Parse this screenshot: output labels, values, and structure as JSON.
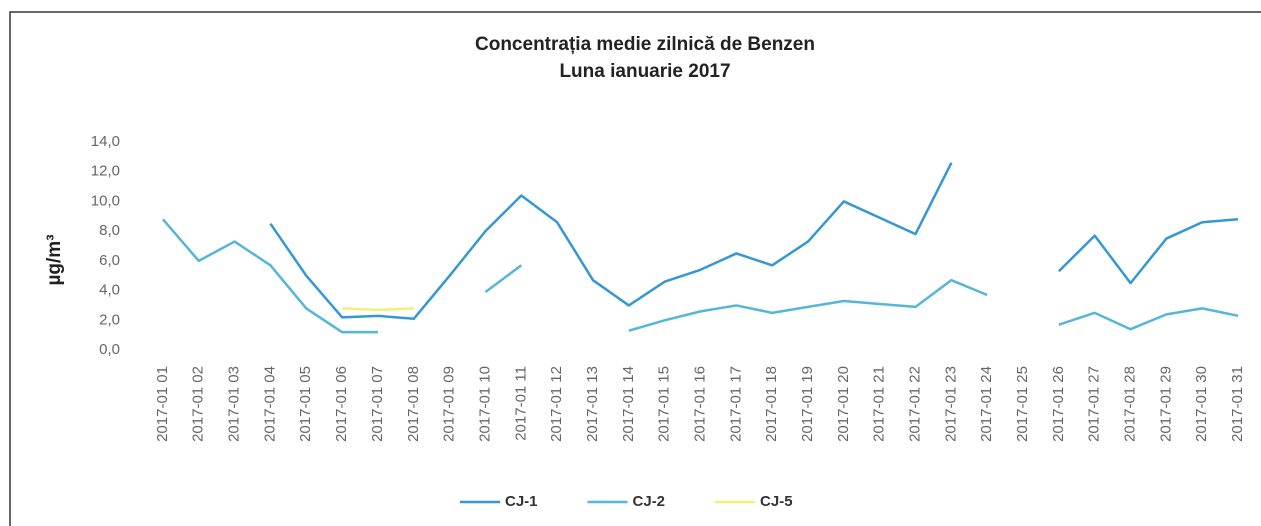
{
  "chart_data": {
    "type": "line",
    "title": "Concentrația medie zilnică de Benzen",
    "subtitle": "Luna ianuarie 2017",
    "y_label": "µg/m³",
    "categories": [
      "2017-01 01",
      "2017-01 02",
      "2017-01 03",
      "2017-01 04",
      "2017-01 05",
      "2017-01 06",
      "2017-01 07",
      "2017-01 08",
      "2017-01 09",
      "2017-01 10",
      "2017-01 11",
      "2017-01 12",
      "2017-01 13",
      "2017-01 14",
      "2017-01 15",
      "2017-01 16",
      "2017-01 17",
      "2017-01 18",
      "2017-01 19",
      "2017-01 20",
      "2017-01 21",
      "2017-01 22",
      "2017-01 23",
      "2017-01 24",
      "2017-01 25",
      "2017-01 26",
      "2017-01 27",
      "2017-01 28",
      "2017-01 29",
      "2017-01 30",
      "2017-01 31"
    ],
    "series": [
      {
        "name": "CJ-1",
        "color": "#3597d3",
        "values": [
          null,
          null,
          null,
          8.5,
          5.0,
          2.2,
          2.3,
          2.1,
          5.0,
          8.0,
          10.4,
          8.6,
          4.7,
          3.0,
          4.6,
          5.4,
          6.5,
          5.7,
          7.3,
          10.0,
          8.9,
          7.8,
          12.6,
          null,
          null,
          5.3,
          7.7,
          4.5,
          7.5,
          8.6,
          8.8
        ]
      },
      {
        "name": "CJ-2",
        "color": "#55b6d6",
        "values": [
          8.8,
          6.0,
          7.3,
          5.7,
          2.8,
          1.2,
          1.2,
          null,
          null,
          3.9,
          5.7,
          null,
          null,
          1.3,
          2.0,
          2.6,
          3.0,
          2.5,
          2.9,
          3.3,
          3.1,
          2.9,
          4.7,
          3.7,
          null,
          1.7,
          2.5,
          1.4,
          2.4,
          2.8,
          2.3
        ]
      },
      {
        "name": "CJ-5",
        "color": "#f2ef7a",
        "values": [
          null,
          null,
          null,
          null,
          null,
          2.8,
          2.7,
          2.8,
          null,
          null,
          null,
          null,
          null,
          null,
          null,
          null,
          null,
          null,
          null,
          null,
          null,
          null,
          null,
          null,
          null,
          null,
          null,
          null,
          null,
          null,
          null
        ]
      }
    ],
    "ylim": [
      0,
      14
    ],
    "yticks": [
      {
        "value": 0,
        "label": "0,0"
      },
      {
        "value": 2,
        "label": "2,0"
      },
      {
        "value": 4,
        "label": "4,0"
      },
      {
        "value": 6,
        "label": "6,0"
      },
      {
        "value": 8,
        "label": "8,0"
      },
      {
        "value": 10,
        "label": "10,0"
      },
      {
        "value": 12,
        "label": "12,0"
      },
      {
        "value": 14,
        "label": "14,0"
      }
    ],
    "grid": false
  }
}
